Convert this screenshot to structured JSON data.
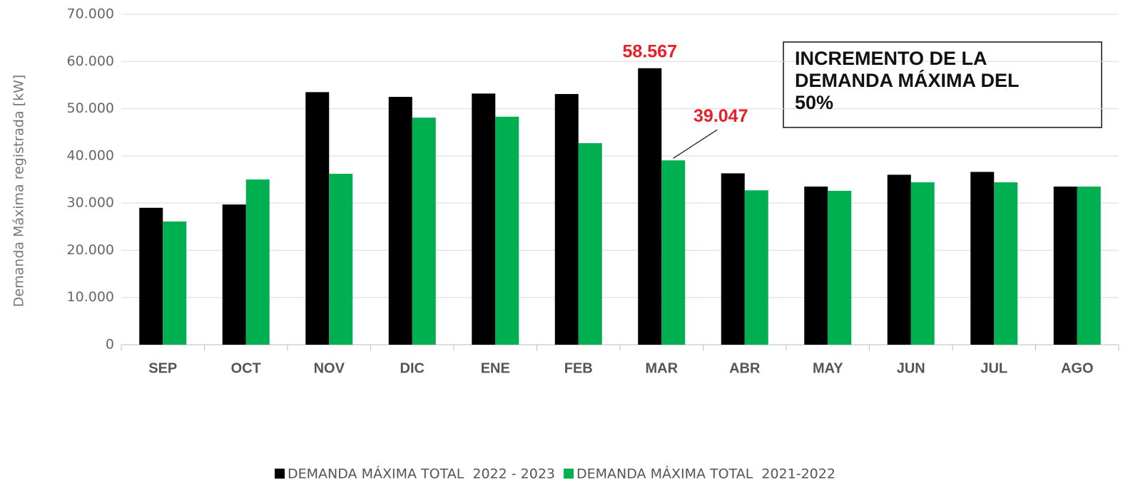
{
  "chart_data": {
    "type": "bar",
    "y_axis_label": "Demanda Máxima registrada [kW]",
    "categories": [
      "SEP",
      "OCT",
      "NOV",
      "DIC",
      "ENE",
      "FEB",
      "MAR",
      "ABR",
      "MAY",
      "JUN",
      "JUL",
      "AGO"
    ],
    "series": [
      {
        "name": "DEMANDA MÁXIMA TOTAL  2022 - 2023",
        "color": "#000000",
        "values": [
          29000,
          29700,
          53500,
          52500,
          53200,
          53100,
          58567,
          36300,
          33500,
          36000,
          36600,
          33500
        ],
        "value_labels": [
          null,
          null,
          null,
          null,
          null,
          null,
          "58.567",
          null,
          null,
          null,
          null,
          null
        ]
      },
      {
        "name": "DEMANDA MÁXIMA TOTAL  2021-2022",
        "color": "#00b050",
        "values": [
          26100,
          35000,
          36200,
          48100,
          48300,
          42700,
          39047,
          32700,
          32600,
          34400,
          34400,
          33500
        ],
        "value_labels": [
          null,
          null,
          null,
          null,
          null,
          null,
          "39.047",
          null,
          null,
          null,
          null,
          null
        ]
      }
    ],
    "ylim": [
      0,
      70000
    ],
    "yticks": [
      0,
      {
        "value": 10000,
        "label": "10.000"
      },
      {
        "value": 20000,
        "label": "20.000"
      },
      {
        "value": 30000,
        "label": "30.000"
      },
      {
        "value": 40000,
        "label": "40.000"
      },
      {
        "value": 50000,
        "label": "50.000"
      },
      {
        "value": 60000,
        "label": "60.000"
      },
      {
        "value": 70000,
        "label": "70.000"
      }
    ],
    "grid": true,
    "legend": "bottom",
    "annotation": [
      "INCREMENTO DE LA",
      "DEMANDA MÁXIMA DEL",
      "50%"
    ]
  }
}
